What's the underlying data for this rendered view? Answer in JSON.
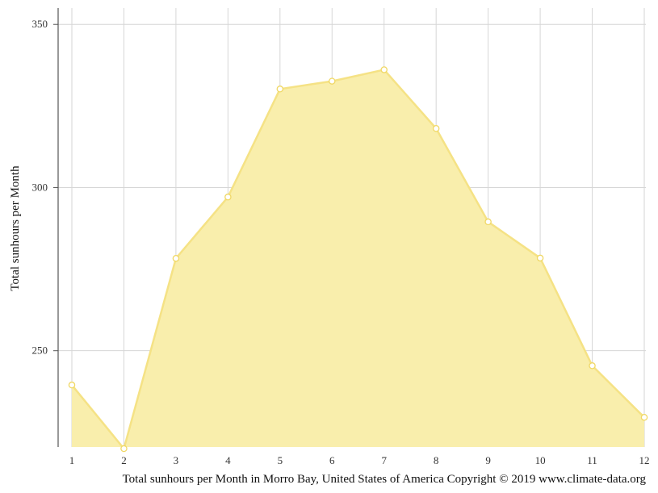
{
  "chart_data": {
    "type": "area",
    "title": "",
    "xlabel": "",
    "ylabel": "Total sunhours per Month",
    "caption": "Total sunhours per Month in Morro Bay, United States of America Copyright © 2019 www.climate-data.org",
    "categories": [
      "1",
      "2",
      "3",
      "4",
      "5",
      "6",
      "7",
      "8",
      "9",
      "10",
      "11",
      "12"
    ],
    "series": [
      {
        "values": [
          239.5,
          220,
          278.3,
          297.1,
          330.2,
          332.6,
          336.1,
          318.1,
          289.5,
          278.4,
          245.4,
          229.6
        ]
      }
    ],
    "yticks": [
      "250",
      "300",
      "350"
    ],
    "ylim": [
      220.5,
      355
    ],
    "grid": true,
    "colors": {
      "fill": "#f9eeac",
      "line": "#f5e285",
      "marker_fill": "#ffffff",
      "marker_stroke": "#f0d865",
      "grid": "#d6d6d6",
      "axis": "#555555"
    }
  }
}
